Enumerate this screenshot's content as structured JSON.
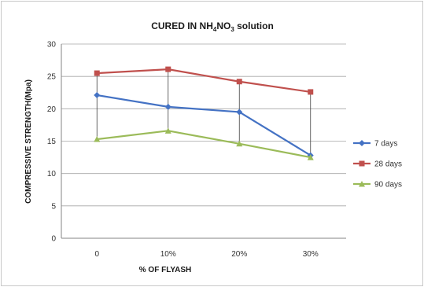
{
  "chart_data": {
    "type": "line",
    "title": {
      "prefix": "CURED IN NH",
      "sub1": "4",
      "middle": "NO",
      "sub2": "3",
      "suffix": " solution"
    },
    "xlabel": "% OF FLYASH",
    "ylabel": "COMPRESSIVE STRENGTH(Mpa)",
    "categories": [
      "0",
      "10%",
      "20%",
      "30%"
    ],
    "ylim": [
      0,
      30
    ],
    "yticks": [
      "0",
      "5",
      "10",
      "15",
      "20",
      "25",
      "30"
    ],
    "grid": true,
    "legend_position": "right",
    "drop_lines": true,
    "series": [
      {
        "name": "7 days",
        "values": [
          22.1,
          20.3,
          19.5,
          12.8
        ],
        "color": "#4472c4",
        "marker": "diamond"
      },
      {
        "name": "28 days",
        "values": [
          25.5,
          26.1,
          24.2,
          22.6
        ],
        "color": "#c0504d",
        "marker": "square"
      },
      {
        "name": "90 days",
        "values": [
          15.3,
          16.6,
          14.6,
          12.5
        ],
        "color": "#9bbb59",
        "marker": "triangle"
      }
    ]
  }
}
